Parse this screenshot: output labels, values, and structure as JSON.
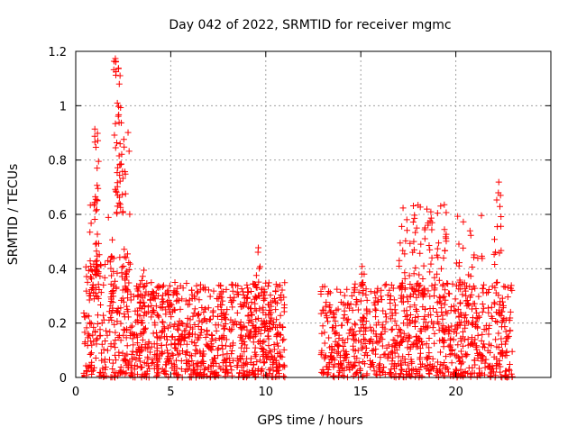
{
  "chart_data": {
    "type": "scatter",
    "title": "Day 042 of 2022, SRMTID for receiver mgmc",
    "xlabel": "GPS time / hours",
    "ylabel": "SRMTID / TECUs",
    "xlim": [
      0,
      25
    ],
    "ylim": [
      0,
      1.2
    ],
    "x_ticks": [
      0,
      5,
      10,
      15,
      20
    ],
    "y_ticks": [
      0,
      0.2,
      0.4,
      0.6,
      0.8,
      1,
      1.2
    ],
    "x_tick_labels": [
      "0",
      "5",
      "10",
      "15",
      "20"
    ],
    "y_tick_labels": [
      "0",
      "0.2",
      "0.4",
      "0.6",
      "0.8",
      "1",
      "1.2"
    ],
    "grid": true,
    "marker": "+",
    "series_color": "#ff0000",
    "series": [
      {
        "name": "SRMTID",
        "clusters": [
          {
            "x_range": [
              0.4,
              3.0
            ],
            "y_range": [
              0.0,
              0.45
            ],
            "count": 220
          },
          {
            "x_range": [
              0.7,
              1.3
            ],
            "y_range": [
              0.3,
              0.65
            ],
            "count": 40
          },
          {
            "x_range": [
              1.0,
              1.2
            ],
            "y_range": [
              0.65,
              0.93
            ],
            "count": 14
          },
          {
            "x_range": [
              1.7,
              2.0
            ],
            "y_range": [
              0.2,
              0.6
            ],
            "count": 20
          },
          {
            "x_range": [
              2.0,
              2.4
            ],
            "y_range": [
              0.6,
              1.18
            ],
            "count": 45
          },
          {
            "x_range": [
              2.4,
              2.9
            ],
            "y_range": [
              0.3,
              0.93
            ],
            "count": 30
          },
          {
            "x_range": [
              3.0,
              11.0
            ],
            "y_range": [
              0.0,
              0.35
            ],
            "count": 820
          },
          {
            "x_range": [
              3.2,
              3.6
            ],
            "y_range": [
              0.2,
              0.4
            ],
            "count": 15
          },
          {
            "x_range": [
              9.0,
              10.8
            ],
            "y_range": [
              0.15,
              0.33
            ],
            "count": 40
          },
          {
            "x_range": [
              9.5,
              9.7
            ],
            "y_range": [
              0.35,
              0.5
            ],
            "count": 6
          },
          {
            "x_range": [
              12.9,
              23.0
            ],
            "y_range": [
              0.0,
              0.35
            ],
            "count": 900
          },
          {
            "x_range": [
              15.0,
              15.2
            ],
            "y_range": [
              0.3,
              0.42
            ],
            "count": 8
          },
          {
            "x_range": [
              17.0,
              19.5
            ],
            "y_range": [
              0.3,
              0.64
            ],
            "count": 90
          },
          {
            "x_range": [
              20.0,
              21.5
            ],
            "y_range": [
              0.25,
              0.6
            ],
            "count": 35
          },
          {
            "x_range": [
              22.0,
              22.4
            ],
            "y_range": [
              0.4,
              0.72
            ],
            "count": 14
          }
        ],
        "baseline_points": [
          0.4,
          1.4,
          2.9
        ]
      }
    ]
  }
}
